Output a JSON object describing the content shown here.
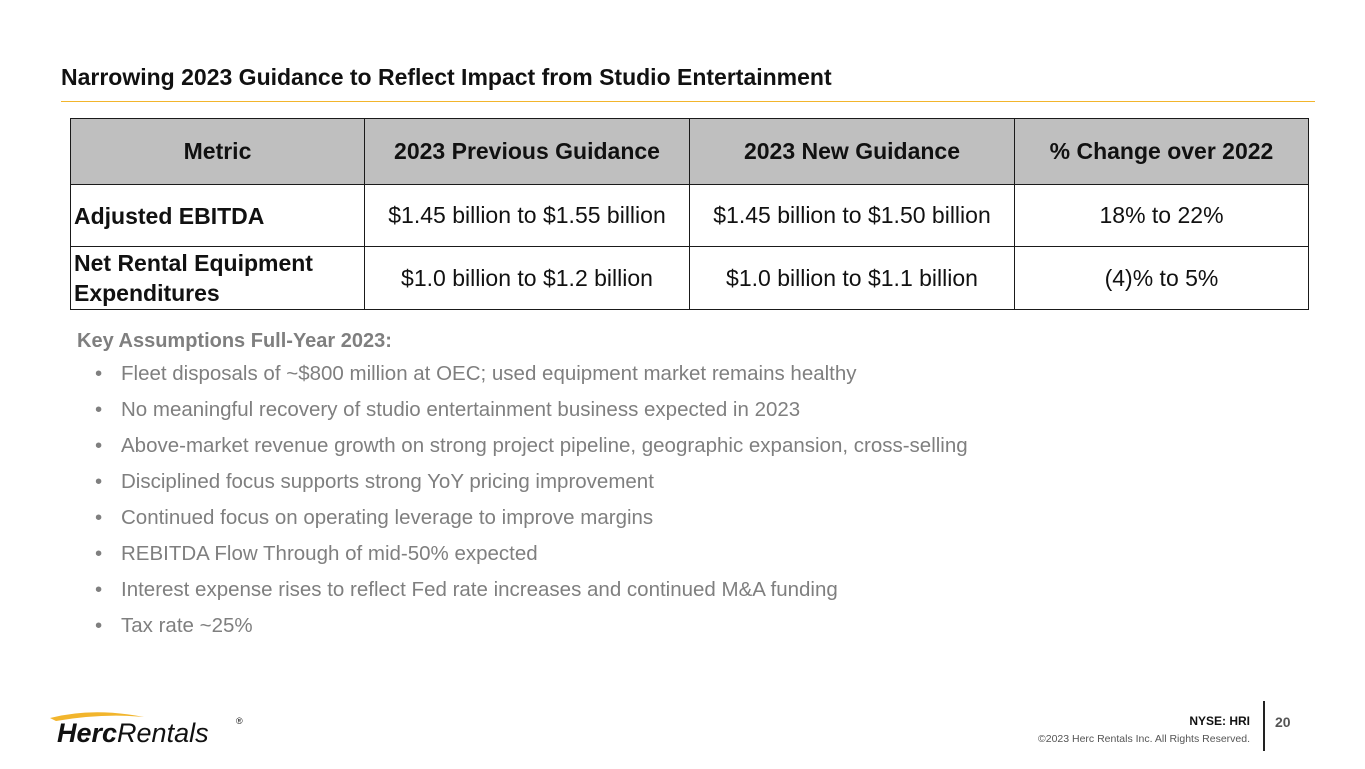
{
  "slide": {
    "title": "Narrowing 2023 Guidance to Reflect Impact from Studio Entertainment"
  },
  "table": {
    "headers": [
      "Metric",
      "2023 Previous Guidance",
      "2023 New Guidance",
      "% Change over 2022"
    ],
    "rows": [
      {
        "metric_lines": [
          "Adjusted EBITDA"
        ],
        "previous": "$1.45 billion to $1.55 billion",
        "new": "$1.45 billion to $1.50 billion",
        "change": "18% to 22%"
      },
      {
        "metric_lines": [
          "Net Rental Equipment",
          "Expenditures"
        ],
        "previous": "$1.0 billion to $1.2 billion",
        "new": "$1.0 billion to $1.1 billion",
        "change": "(4)% to 5%"
      }
    ]
  },
  "assumptions": {
    "heading": "Key Assumptions Full-Year 2023:",
    "bullet": "•",
    "items": [
      "Fleet disposals of ~$800 million at OEC; used equipment market remains healthy",
      "No meaningful recovery of studio entertainment business expected in 2023",
      "Above-market revenue growth on strong project pipeline, geographic expansion, cross-selling",
      "Disciplined focus supports strong YoY pricing improvement",
      "Continued focus on operating leverage to improve margins",
      "REBITDA Flow Through of mid-50% expected",
      "Interest expense rises to reflect Fed rate increases and continued M&A funding",
      "Tax rate ~25%"
    ]
  },
  "footer": {
    "logo_bold": "Herc",
    "logo_light": "Rentals",
    "logo_registered": "®",
    "ticker": "NYSE: HRI",
    "copyright": "©2023 Herc Rentals Inc.  All Rights Reserved.",
    "page_number": "20"
  },
  "colors": {
    "accent": "#f2b52c",
    "table_header_bg": "#bfbfbf",
    "assumption_text": "#7f7f7f"
  }
}
